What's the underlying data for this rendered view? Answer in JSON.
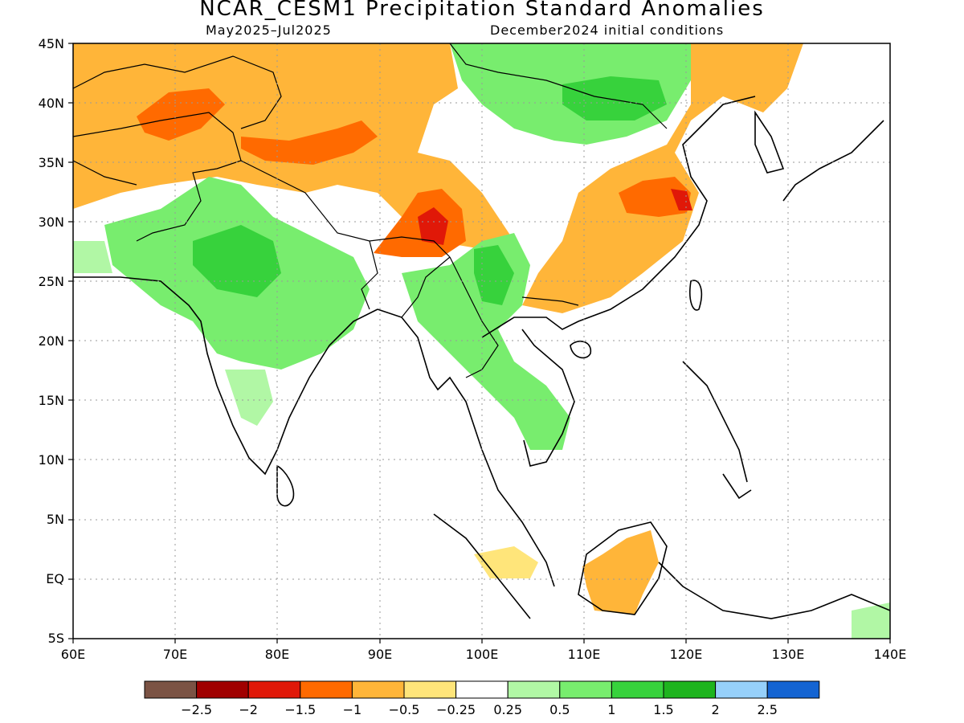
{
  "title": "NCAR_CESM1 Precipitation Standard Anomalies",
  "subtitle_left": "May2025–Jul2025",
  "subtitle_right": "December2024 initial conditions",
  "map": {
    "lon_range": [
      60,
      140
    ],
    "lat_range": [
      -5,
      45
    ],
    "lon_ticks": [
      "60E",
      "70E",
      "80E",
      "90E",
      "100E",
      "110E",
      "120E",
      "130E",
      "140E"
    ],
    "lat_ticks": [
      "5S",
      "EQ",
      "5N",
      "10N",
      "15N",
      "20N",
      "25N",
      "30N",
      "35N",
      "40N",
      "45N"
    ],
    "gridlines": "dotted"
  },
  "colorbar": {
    "colors": [
      "#7b5344",
      "#a00000",
      "#e01808",
      "#ff6a00",
      "#ffb539",
      "#ffe57a",
      "#ffffff",
      "#b1f7a5",
      "#78ed6e",
      "#37d23c",
      "#1eb41e",
      "#96d0fa",
      "#1464d2"
    ],
    "labels": [
      "−2.5",
      "−2",
      "−1.5",
      "−1",
      "−0.5",
      "−0.25",
      "0.25",
      "0.5",
      "1",
      "1.5",
      "2",
      "2.5"
    ]
  }
}
